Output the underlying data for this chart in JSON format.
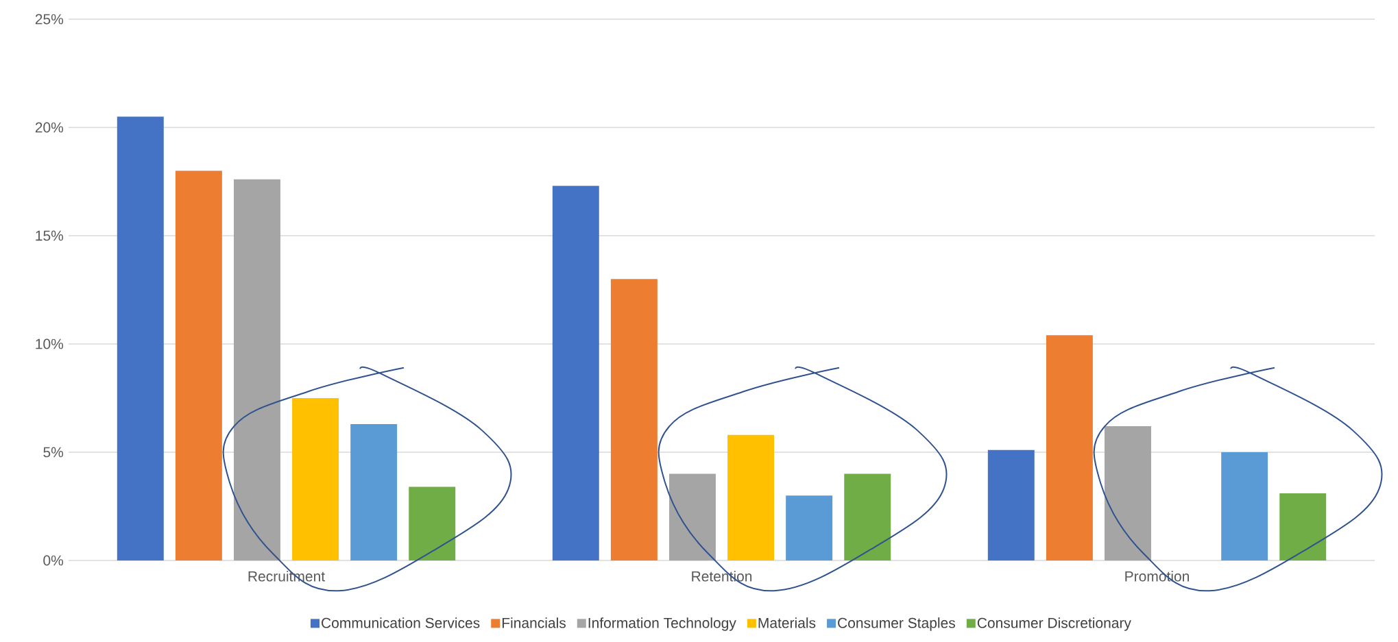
{
  "chart_data": {
    "type": "bar",
    "categories": [
      "Recruitment",
      "Retention",
      "Promotion"
    ],
    "series": [
      {
        "name": "Communication Services",
        "color": "#4472c4",
        "values": [
          20.5,
          17.3,
          5.1
        ]
      },
      {
        "name": "Financials",
        "color": "#ed7d31",
        "values": [
          18.0,
          13.0,
          10.4
        ]
      },
      {
        "name": "Information Technology",
        "color": "#a5a5a5",
        "values": [
          17.6,
          4.0,
          6.2
        ]
      },
      {
        "name": "Materials",
        "color": "#ffc000",
        "values": [
          7.5,
          5.8,
          null
        ]
      },
      {
        "name": "Consumer Staples",
        "color": "#5b9bd5",
        "values": [
          6.3,
          3.0,
          5.0
        ]
      },
      {
        "name": "Consumer Discretionary",
        "color": "#70ad47",
        "values": [
          3.4,
          4.0,
          3.1
        ]
      }
    ],
    "ylim": [
      0,
      25
    ],
    "yticks": [
      {
        "value": 0,
        "label": "0%"
      },
      {
        "value": 5,
        "label": "5%"
      },
      {
        "value": 10,
        "label": "10%"
      },
      {
        "value": 15,
        "label": "15%"
      },
      {
        "value": 20,
        "label": "20%"
      },
      {
        "value": 25,
        "label": "25%"
      }
    ],
    "grid": "y",
    "legend": "bottom"
  }
}
